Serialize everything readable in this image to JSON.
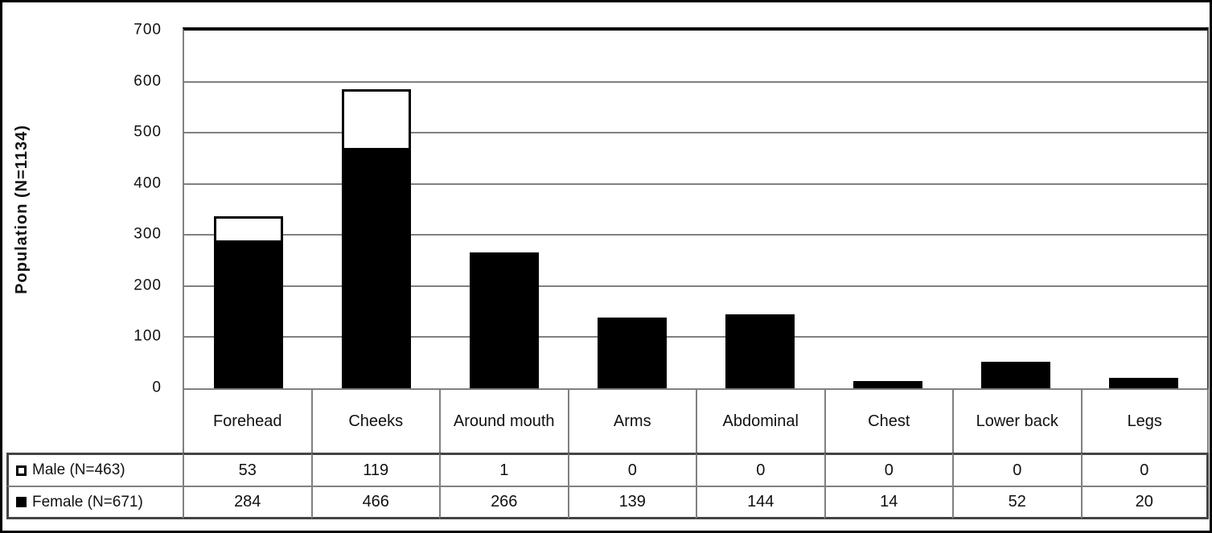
{
  "chart_data": {
    "type": "bar",
    "stacked": true,
    "title": "",
    "xlabel": "",
    "ylabel": "Population (N=1134)",
    "ylim": [
      0,
      700
    ],
    "ytick_step": 100,
    "grid": true,
    "legend_position": "table-left",
    "categories": [
      "Forehead",
      "Cheeks",
      "Around mouth",
      "Arms",
      "Abdominal",
      "Chest",
      "Lower back",
      "Legs"
    ],
    "series": [
      {
        "name": "Male (N=463)",
        "marker": "open-square-icon",
        "color": "#ffffff",
        "values": [
          53,
          119,
          1,
          0,
          0,
          0,
          0,
          0
        ]
      },
      {
        "name": "Female (N=671)",
        "marker": "filled-square-icon",
        "color": "#000000",
        "values": [
          284,
          466,
          266,
          139,
          144,
          14,
          52,
          20
        ]
      }
    ]
  },
  "colors": {
    "male_bar_fill": "#ffffff",
    "male_bar_border": "#000000",
    "female_bar_fill": "#000000",
    "gridline": "#808080",
    "table_border": "#808080",
    "outer_border": "#000000"
  }
}
